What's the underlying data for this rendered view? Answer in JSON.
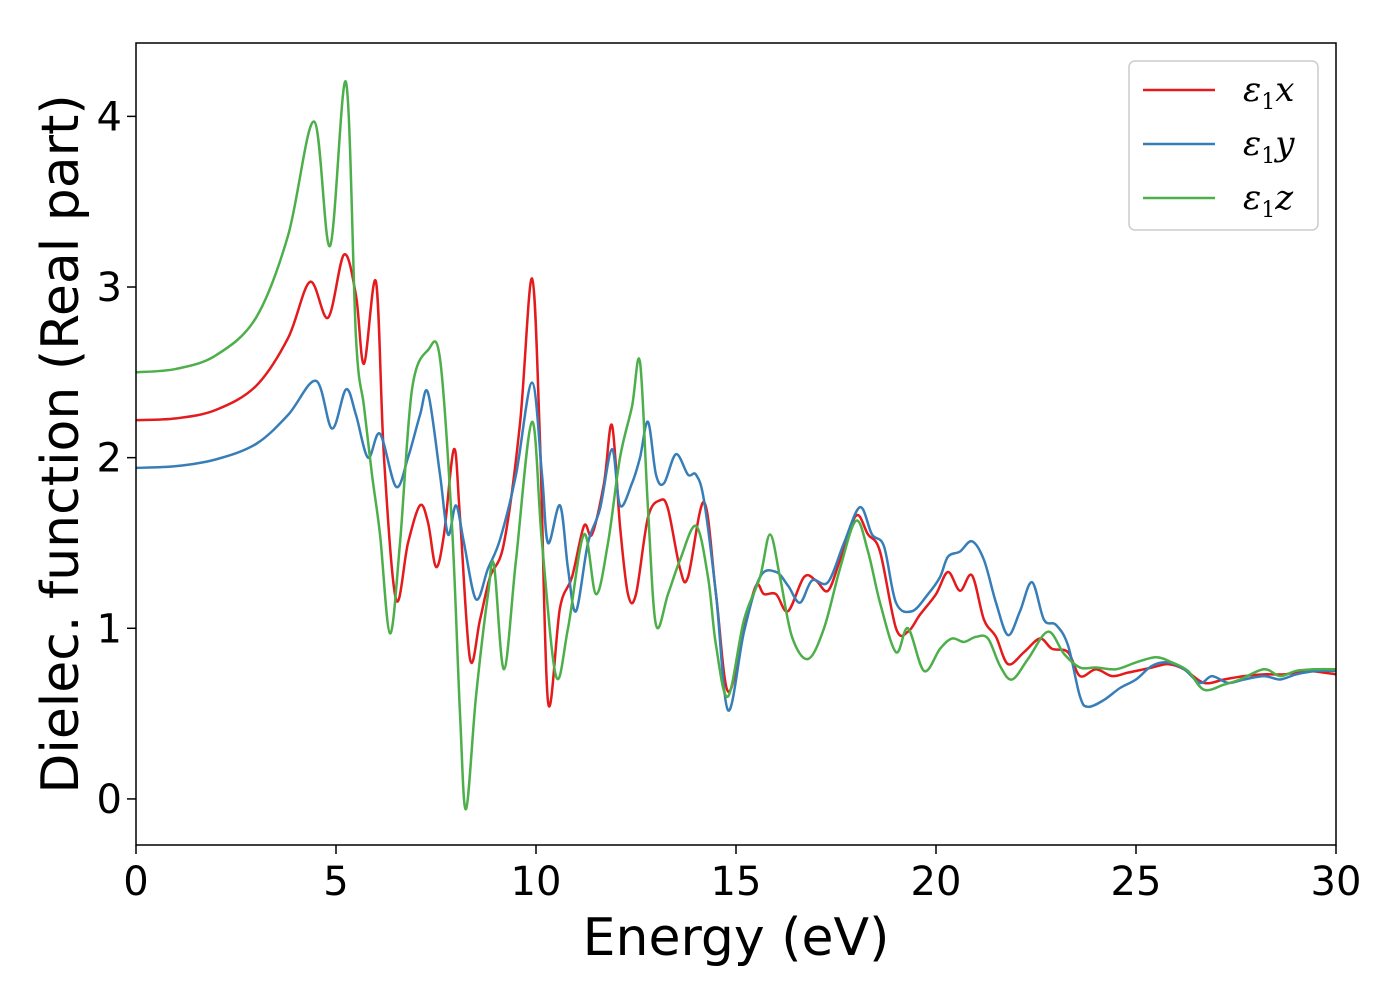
{
  "chart_data": {
    "type": "line",
    "xlabel": "Energy (eV)",
    "ylabel": "Dielec. function (Real part)",
    "xlim": [
      0,
      30
    ],
    "ylim": [
      -0.27,
      4.43
    ],
    "xticks": [
      0,
      5,
      10,
      15,
      20,
      25,
      30
    ],
    "yticks": [
      0,
      1,
      2,
      3,
      4
    ],
    "grid": false,
    "legend_position": "top-right",
    "series": [
      {
        "name": "ε1x",
        "color": "#e41a1c",
        "points": [
          [
            0,
            2.22
          ],
          [
            1,
            2.23
          ],
          [
            2,
            2.28
          ],
          [
            3,
            2.42
          ],
          [
            3.8,
            2.7
          ],
          [
            4.35,
            3.03
          ],
          [
            4.8,
            2.82
          ],
          [
            5.2,
            3.19
          ],
          [
            5.5,
            2.95
          ],
          [
            5.7,
            2.55
          ],
          [
            6.0,
            3.03
          ],
          [
            6.2,
            2.0
          ],
          [
            6.5,
            1.17
          ],
          [
            6.8,
            1.5
          ],
          [
            7.1,
            1.72
          ],
          [
            7.3,
            1.62
          ],
          [
            7.5,
            1.36
          ],
          [
            7.7,
            1.55
          ],
          [
            7.95,
            2.05
          ],
          [
            8.1,
            1.65
          ],
          [
            8.35,
            0.82
          ],
          [
            8.6,
            1.05
          ],
          [
            8.85,
            1.3
          ],
          [
            9.2,
            1.5
          ],
          [
            9.6,
            2.2
          ],
          [
            9.9,
            3.05
          ],
          [
            10.1,
            2.1
          ],
          [
            10.3,
            0.57
          ],
          [
            10.6,
            1.12
          ],
          [
            10.9,
            1.3
          ],
          [
            11.2,
            1.6
          ],
          [
            11.4,
            1.55
          ],
          [
            11.7,
            1.85
          ],
          [
            11.9,
            2.19
          ],
          [
            12.1,
            1.6
          ],
          [
            12.3,
            1.2
          ],
          [
            12.5,
            1.2
          ],
          [
            12.8,
            1.65
          ],
          [
            13.1,
            1.75
          ],
          [
            13.3,
            1.7
          ],
          [
            13.6,
            1.35
          ],
          [
            13.8,
            1.3
          ],
          [
            14.2,
            1.74
          ],
          [
            14.5,
            1.2
          ],
          [
            14.8,
            0.63
          ],
          [
            15.2,
            1.0
          ],
          [
            15.5,
            1.25
          ],
          [
            15.7,
            1.2
          ],
          [
            16.0,
            1.2
          ],
          [
            16.3,
            1.1
          ],
          [
            16.7,
            1.3
          ],
          [
            17.0,
            1.28
          ],
          [
            17.3,
            1.22
          ],
          [
            17.6,
            1.4
          ],
          [
            18.0,
            1.66
          ],
          [
            18.3,
            1.55
          ],
          [
            18.6,
            1.45
          ],
          [
            19.0,
            1.0
          ],
          [
            19.3,
            0.98
          ],
          [
            19.6,
            1.08
          ],
          [
            20.0,
            1.2
          ],
          [
            20.3,
            1.33
          ],
          [
            20.6,
            1.22
          ],
          [
            20.9,
            1.31
          ],
          [
            21.2,
            1.05
          ],
          [
            21.5,
            0.95
          ],
          [
            21.8,
            0.79
          ],
          [
            22.2,
            0.86
          ],
          [
            22.6,
            0.94
          ],
          [
            22.9,
            0.88
          ],
          [
            23.3,
            0.86
          ],
          [
            23.6,
            0.72
          ],
          [
            24.0,
            0.76
          ],
          [
            24.4,
            0.72
          ],
          [
            24.8,
            0.74
          ],
          [
            25.4,
            0.77
          ],
          [
            25.8,
            0.79
          ],
          [
            26.2,
            0.76
          ],
          [
            26.7,
            0.68
          ],
          [
            27.2,
            0.7
          ],
          [
            27.7,
            0.72
          ],
          [
            28.2,
            0.73
          ],
          [
            28.7,
            0.73
          ],
          [
            29.3,
            0.75
          ],
          [
            30,
            0.73
          ]
        ]
      },
      {
        "name": "ε1y",
        "color": "#377eb8",
        "points": [
          [
            0,
            1.94
          ],
          [
            1,
            1.95
          ],
          [
            2,
            1.99
          ],
          [
            3,
            2.08
          ],
          [
            3.8,
            2.25
          ],
          [
            4.5,
            2.45
          ],
          [
            4.9,
            2.17
          ],
          [
            5.25,
            2.4
          ],
          [
            5.5,
            2.25
          ],
          [
            5.8,
            2.0
          ],
          [
            6.1,
            2.14
          ],
          [
            6.5,
            1.83
          ],
          [
            6.8,
            2.0
          ],
          [
            7.1,
            2.25
          ],
          [
            7.3,
            2.38
          ],
          [
            7.6,
            1.9
          ],
          [
            7.8,
            1.55
          ],
          [
            8.0,
            1.72
          ],
          [
            8.2,
            1.5
          ],
          [
            8.5,
            1.17
          ],
          [
            8.8,
            1.35
          ],
          [
            9.1,
            1.52
          ],
          [
            9.5,
            1.9
          ],
          [
            9.9,
            2.44
          ],
          [
            10.15,
            1.9
          ],
          [
            10.3,
            1.5
          ],
          [
            10.6,
            1.72
          ],
          [
            10.8,
            1.35
          ],
          [
            11.0,
            1.1
          ],
          [
            11.3,
            1.5
          ],
          [
            11.6,
            1.7
          ],
          [
            11.9,
            2.05
          ],
          [
            12.1,
            1.72
          ],
          [
            12.4,
            1.85
          ],
          [
            12.6,
            2.0
          ],
          [
            12.8,
            2.21
          ],
          [
            13.0,
            1.9
          ],
          [
            13.2,
            1.85
          ],
          [
            13.5,
            2.02
          ],
          [
            13.8,
            1.9
          ],
          [
            14.0,
            1.9
          ],
          [
            14.2,
            1.75
          ],
          [
            14.5,
            1.2
          ],
          [
            14.8,
            0.52
          ],
          [
            15.2,
            0.98
          ],
          [
            15.6,
            1.3
          ],
          [
            16.0,
            1.33
          ],
          [
            16.3,
            1.25
          ],
          [
            16.6,
            1.15
          ],
          [
            16.9,
            1.28
          ],
          [
            17.3,
            1.27
          ],
          [
            17.7,
            1.5
          ],
          [
            18.1,
            1.71
          ],
          [
            18.4,
            1.55
          ],
          [
            18.7,
            1.48
          ],
          [
            19.0,
            1.15
          ],
          [
            19.4,
            1.1
          ],
          [
            19.8,
            1.2
          ],
          [
            20.1,
            1.3
          ],
          [
            20.3,
            1.42
          ],
          [
            20.6,
            1.45
          ],
          [
            20.9,
            1.51
          ],
          [
            21.2,
            1.4
          ],
          [
            21.5,
            1.15
          ],
          [
            21.8,
            0.96
          ],
          [
            22.1,
            1.1
          ],
          [
            22.4,
            1.27
          ],
          [
            22.7,
            1.05
          ],
          [
            23.0,
            1.02
          ],
          [
            23.3,
            0.9
          ],
          [
            23.6,
            0.6
          ],
          [
            23.8,
            0.54
          ],
          [
            24.2,
            0.58
          ],
          [
            24.6,
            0.65
          ],
          [
            25.0,
            0.7
          ],
          [
            25.4,
            0.78
          ],
          [
            25.8,
            0.8
          ],
          [
            26.2,
            0.76
          ],
          [
            26.6,
            0.68
          ],
          [
            26.9,
            0.72
          ],
          [
            27.3,
            0.68
          ],
          [
            27.7,
            0.7
          ],
          [
            28.2,
            0.72
          ],
          [
            28.6,
            0.7
          ],
          [
            29.0,
            0.73
          ],
          [
            29.5,
            0.75
          ],
          [
            30,
            0.75
          ]
        ]
      },
      {
        "name": "ε1z",
        "color": "#4daf4a",
        "points": [
          [
            0,
            2.5
          ],
          [
            1,
            2.52
          ],
          [
            2,
            2.6
          ],
          [
            3,
            2.82
          ],
          [
            3.8,
            3.3
          ],
          [
            4.45,
            3.97
          ],
          [
            4.85,
            3.24
          ],
          [
            5.25,
            4.2
          ],
          [
            5.5,
            2.7
          ],
          [
            5.7,
            2.3
          ],
          [
            5.9,
            1.9
          ],
          [
            6.1,
            1.55
          ],
          [
            6.35,
            0.97
          ],
          [
            6.6,
            1.5
          ],
          [
            6.9,
            2.4
          ],
          [
            7.3,
            2.63
          ],
          [
            7.6,
            2.58
          ],
          [
            7.9,
            1.6
          ],
          [
            8.1,
            0.5
          ],
          [
            8.25,
            -0.06
          ],
          [
            8.5,
            0.6
          ],
          [
            8.8,
            1.2
          ],
          [
            8.95,
            1.37
          ],
          [
            9.2,
            0.76
          ],
          [
            9.5,
            1.4
          ],
          [
            9.9,
            2.21
          ],
          [
            10.15,
            1.5
          ],
          [
            10.5,
            0.72
          ],
          [
            10.8,
            1.0
          ],
          [
            11.2,
            1.55
          ],
          [
            11.5,
            1.2
          ],
          [
            11.8,
            1.5
          ],
          [
            12.1,
            2.0
          ],
          [
            12.4,
            2.3
          ],
          [
            12.6,
            2.56
          ],
          [
            12.8,
            1.7
          ],
          [
            13.0,
            1.02
          ],
          [
            13.3,
            1.2
          ],
          [
            13.6,
            1.4
          ],
          [
            14.0,
            1.6
          ],
          [
            14.3,
            1.3
          ],
          [
            14.5,
            0.9
          ],
          [
            14.8,
            0.6
          ],
          [
            15.2,
            1.05
          ],
          [
            15.6,
            1.3
          ],
          [
            15.85,
            1.55
          ],
          [
            16.1,
            1.3
          ],
          [
            16.4,
            0.95
          ],
          [
            16.8,
            0.82
          ],
          [
            17.2,
            1.0
          ],
          [
            17.6,
            1.35
          ],
          [
            18.0,
            1.63
          ],
          [
            18.3,
            1.45
          ],
          [
            18.6,
            1.15
          ],
          [
            19.0,
            0.86
          ],
          [
            19.3,
            1.0
          ],
          [
            19.7,
            0.75
          ],
          [
            20.1,
            0.88
          ],
          [
            20.4,
            0.94
          ],
          [
            20.7,
            0.92
          ],
          [
            21.0,
            0.95
          ],
          [
            21.3,
            0.94
          ],
          [
            21.6,
            0.78
          ],
          [
            21.9,
            0.7
          ],
          [
            22.3,
            0.82
          ],
          [
            22.8,
            0.98
          ],
          [
            23.2,
            0.85
          ],
          [
            23.6,
            0.77
          ],
          [
            24.0,
            0.77
          ],
          [
            24.5,
            0.76
          ],
          [
            25.0,
            0.8
          ],
          [
            25.5,
            0.83
          ],
          [
            25.9,
            0.8
          ],
          [
            26.3,
            0.75
          ],
          [
            26.7,
            0.64
          ],
          [
            27.2,
            0.67
          ],
          [
            27.6,
            0.7
          ],
          [
            28.2,
            0.76
          ],
          [
            28.6,
            0.72
          ],
          [
            29.0,
            0.75
          ],
          [
            29.5,
            0.76
          ],
          [
            30,
            0.76
          ]
        ]
      }
    ]
  },
  "legend": [
    {
      "symbol": "ε",
      "sub": "1",
      "axis": "x"
    },
    {
      "symbol": "ε",
      "sub": "1",
      "axis": "y"
    },
    {
      "symbol": "ε",
      "sub": "1",
      "axis": "z"
    }
  ]
}
